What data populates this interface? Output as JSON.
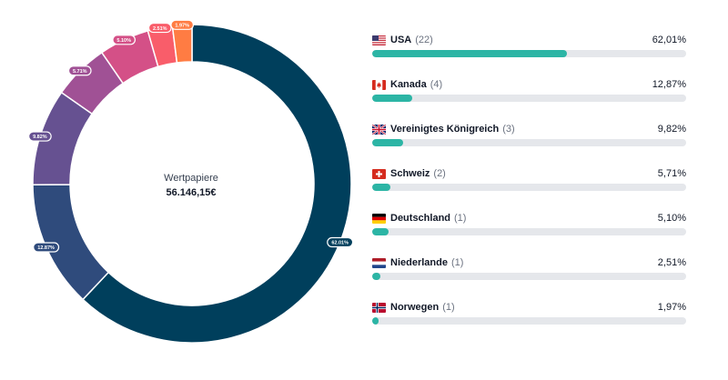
{
  "center": {
    "title": "Wertpapiere",
    "value": "56.146,15€"
  },
  "chart_data": {
    "type": "pie",
    "variant": "donut",
    "categories": [
      "USA",
      "Kanada",
      "Vereinigtes Königreich",
      "Schweiz",
      "Deutschland",
      "Niederlande",
      "Norwegen"
    ],
    "values": [
      62.01,
      12.87,
      9.82,
      5.71,
      5.1,
      2.51,
      1.97
    ],
    "slice_labels": [
      "62.01%",
      "12.87%",
      "9.82%",
      "5.71%",
      "5.10%",
      "2.51%",
      "1.97%"
    ],
    "colors": [
      "#003f5c",
      "#2f4b7c",
      "#665191",
      "#a05195",
      "#d45087",
      "#f95d6a",
      "#ff7c43"
    ],
    "legend": "right"
  },
  "legend": [
    {
      "name": "USA",
      "count": "(22)",
      "pct": "62,01%",
      "value": 62.01,
      "flag": "us-flag-icon"
    },
    {
      "name": "Kanada",
      "count": "(4)",
      "pct": "12,87%",
      "value": 12.87,
      "flag": "canada-flag-icon"
    },
    {
      "name": "Vereinigtes Königreich",
      "count": "(3)",
      "pct": "9,82%",
      "value": 9.82,
      "flag": "uk-flag-icon"
    },
    {
      "name": "Schweiz",
      "count": "(2)",
      "pct": "5,71%",
      "value": 5.71,
      "flag": "swiss-flag-icon"
    },
    {
      "name": "Deutschland",
      "count": "(1)",
      "pct": "5,10%",
      "value": 5.1,
      "flag": "germany-flag-icon"
    },
    {
      "name": "Niederlande",
      "count": "(1)",
      "pct": "2,51%",
      "value": 2.51,
      "flag": "netherlands-flag-icon"
    },
    {
      "name": "Norwegen",
      "count": "(1)",
      "pct": "1,97%",
      "value": 1.97,
      "flag": "norway-flag-icon"
    }
  ],
  "bar_color": "#2cb5a5"
}
